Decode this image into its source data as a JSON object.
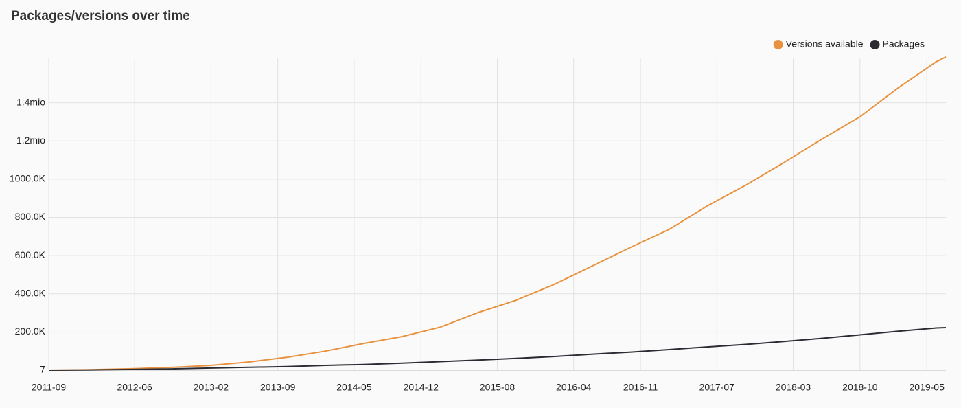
{
  "chart_data": {
    "type": "line",
    "title": "Packages/versions over time",
    "x": [
      "2011-09",
      "2012-01",
      "2012-06",
      "2012-10",
      "2013-02",
      "2013-06",
      "2013-10",
      "2014-02",
      "2014-06",
      "2014-10",
      "2015-02",
      "2015-06",
      "2015-10",
      "2016-02",
      "2016-06",
      "2016-10",
      "2017-02",
      "2017-06",
      "2017-10",
      "2018-02",
      "2018-06",
      "2018-10",
      "2019-02",
      "2019-06",
      "2019-07"
    ],
    "series": [
      {
        "name": "Versions available",
        "color": "#e8923f",
        "values": [
          0,
          2000,
          8000,
          15000,
          25000,
          43000,
          68000,
          100000,
          140000,
          176000,
          225000,
          302000,
          367000,
          450000,
          547000,
          644000,
          737000,
          860000,
          968000,
          1086000,
          1209000,
          1327000,
          1478000,
          1615000,
          1640000
        ]
      },
      {
        "name": "Packages",
        "color": "#2b2b33",
        "values": [
          0,
          1000,
          4000,
          7000,
          11000,
          15000,
          19000,
          25000,
          30000,
          37000,
          45000,
          53000,
          62000,
          72000,
          84000,
          95000,
          108000,
          122000,
          135000,
          150000,
          167000,
          185000,
          204000,
          221000,
          223000
        ]
      }
    ],
    "xlim": [
      "2011-09",
      "2019-07"
    ],
    "xticks": [
      "2011-09",
      "2012-06",
      "2013-02",
      "2013-09",
      "2014-05",
      "2014-12",
      "2015-08",
      "2016-04",
      "2016-11",
      "2017-07",
      "2018-03",
      "2018-10",
      "2019-05"
    ],
    "ylim": [
      0,
      1600000
    ],
    "yticks": [
      7,
      {
        "value": 200000,
        "label": "200.0K"
      },
      {
        "value": 400000,
        "label": "400.0K"
      },
      {
        "value": 600000,
        "label": "600.0K"
      },
      {
        "value": 800000,
        "label": "800.0K"
      },
      {
        "value": 1000000,
        "label": "1000.0K"
      },
      {
        "value": 1200000,
        "label": "1.2mio"
      },
      {
        "value": 1400000,
        "label": "1.4mio"
      }
    ],
    "grid": true,
    "legend": "top-right"
  }
}
